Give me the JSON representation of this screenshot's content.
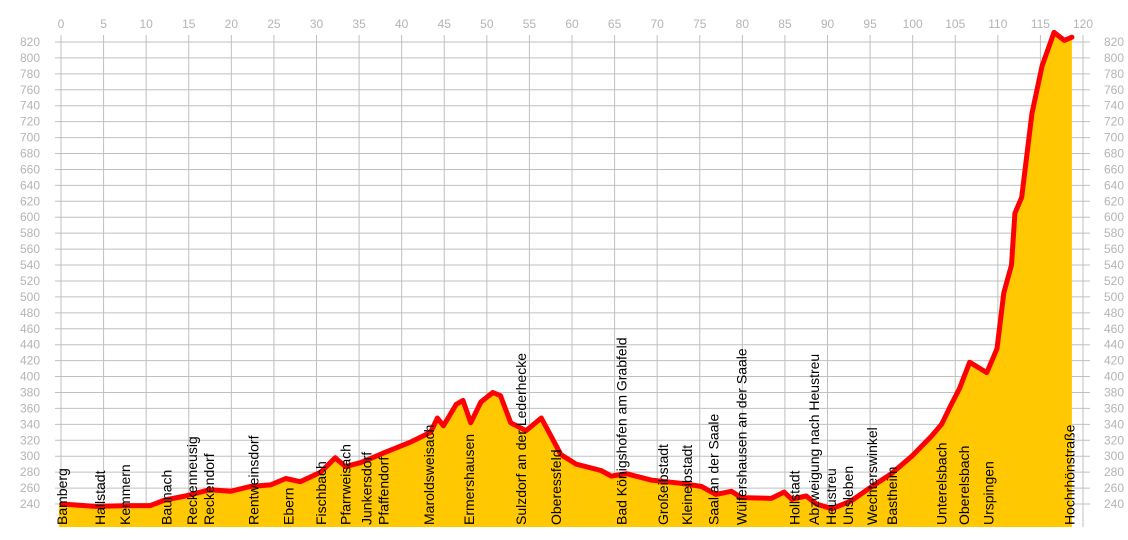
{
  "chart_data": {
    "type": "area",
    "title": "",
    "xlabel": "",
    "ylabel": "",
    "xlim": [
      0,
      120
    ],
    "ylim": [
      240,
      820
    ],
    "x_ticks": [
      0,
      5,
      10,
      15,
      20,
      25,
      30,
      35,
      40,
      45,
      50,
      55,
      60,
      65,
      70,
      75,
      80,
      85,
      90,
      95,
      100,
      105,
      110,
      115,
      120
    ],
    "y_ticks": [
      240,
      260,
      280,
      300,
      320,
      340,
      360,
      380,
      400,
      420,
      440,
      460,
      480,
      500,
      520,
      540,
      560,
      580,
      600,
      620,
      640,
      660,
      680,
      700,
      720,
      740,
      760,
      780,
      800,
      820
    ],
    "grid": true,
    "colors": {
      "fill": "#ffc800",
      "line": "#ff0000",
      "grid": "#c0c0c0",
      "ticks": "#b4b4b4"
    },
    "profile": [
      [
        0.1,
        240
      ],
      [
        4.0,
        237
      ],
      [
        8.1,
        238
      ],
      [
        10.5,
        238
      ],
      [
        12.2,
        245
      ],
      [
        14.6,
        250
      ],
      [
        17.5,
        258
      ],
      [
        19.9,
        256
      ],
      [
        22.2,
        262
      ],
      [
        24.6,
        264
      ],
      [
        26.4,
        272
      ],
      [
        28.1,
        268
      ],
      [
        30.5,
        280
      ],
      [
        32.2,
        298
      ],
      [
        33.4,
        287
      ],
      [
        35.2,
        292
      ],
      [
        38.1,
        305
      ],
      [
        41.1,
        318
      ],
      [
        43.4,
        330
      ],
      [
        44.2,
        348
      ],
      [
        44.9,
        338
      ],
      [
        46.4,
        365
      ],
      [
        47.2,
        370
      ],
      [
        48.1,
        342
      ],
      [
        49.3,
        368
      ],
      [
        50.7,
        380
      ],
      [
        51.6,
        376
      ],
      [
        52.8,
        342
      ],
      [
        54.6,
        332
      ],
      [
        56.4,
        348
      ],
      [
        57.3,
        330
      ],
      [
        58.7,
        302
      ],
      [
        60.5,
        290
      ],
      [
        63.4,
        282
      ],
      [
        64.6,
        275
      ],
      [
        66.4,
        278
      ],
      [
        69.3,
        270
      ],
      [
        72.8,
        266
      ],
      [
        75.2,
        262
      ],
      [
        76.9,
        252
      ],
      [
        78.7,
        256
      ],
      [
        79.9,
        248
      ],
      [
        83.4,
        247
      ],
      [
        84.9,
        255
      ],
      [
        85.8,
        246
      ],
      [
        87.5,
        250
      ],
      [
        88.7,
        240
      ],
      [
        90.5,
        234
      ],
      [
        92.8,
        244
      ],
      [
        95.2,
        262
      ],
      [
        97.5,
        278
      ],
      [
        99.9,
        300
      ],
      [
        102.2,
        325
      ],
      [
        103.4,
        340
      ],
      [
        104.4,
        362
      ],
      [
        105.5,
        385
      ],
      [
        106.7,
        418
      ],
      [
        108.7,
        405
      ],
      [
        109.9,
        435
      ],
      [
        110.7,
        505
      ],
      [
        111.6,
        540
      ],
      [
        112.0,
        605
      ],
      [
        112.8,
        625
      ],
      [
        114.0,
        730
      ],
      [
        115.2,
        790
      ],
      [
        116.6,
        832
      ],
      [
        117.8,
        822
      ],
      [
        118.7,
        826
      ]
    ],
    "waypoints": [
      {
        "name": "Bamberg",
        "km": 0.1
      },
      {
        "name": "Hallstadt",
        "km": 4.6
      },
      {
        "name": "Kemmern",
        "km": 7.5
      },
      {
        "name": "Baunach",
        "km": 12.4
      },
      {
        "name": "Reckenneusig",
        "km": 15.4
      },
      {
        "name": "Reckendorf",
        "km": 16.6
      },
      {
        "name": "Rentweinsdorf",
        "km": 22.6
      },
      {
        "name": "Ebern",
        "km": 26.7
      },
      {
        "name": "Fischbach",
        "km": 30.5
      },
      {
        "name": "Pfarrweisach",
        "km": 33.4
      },
      {
        "name": "Junkersdorf",
        "km": 35.9
      },
      {
        "name": "Pfaffendorf",
        "km": 37.5
      },
      {
        "name": "Maroldsweisach",
        "km": 43.2
      },
      {
        "name": "Ermershausen",
        "km": 47.9
      },
      {
        "name": "Sulzdorf an der Lederhecke",
        "km": 54.0
      },
      {
        "name": "Oberessfeld",
        "km": 58.1
      },
      {
        "name": "Bad Königshofen am Grabfeld",
        "km": 65.8
      },
      {
        "name": "Großeibstadt",
        "km": 70.7
      },
      {
        "name": "Kleineibstadt",
        "km": 73.5
      },
      {
        "name": "Saal an der Saale",
        "km": 76.6
      },
      {
        "name": "Wülfershausen an der Saale",
        "km": 79.9
      },
      {
        "name": "Hollstadt",
        "km": 86.1
      },
      {
        "name": "Abzweigung nach Heustreu",
        "km": 88.4
      },
      {
        "name": "Heustreu",
        "km": 89.3
      },
      {
        "name": "Unsleben",
        "km": 92.2
      },
      {
        "name": "Wechterswinkel",
        "km": 95.2
      },
      {
        "name": "Bastheim",
        "km": 97.6
      },
      {
        "name": "Unterelsbach",
        "km": 103.4
      },
      {
        "name": "Oberelsbach",
        "km": 106.0
      },
      {
        "name": "Urspingen",
        "km": 108.9
      },
      {
        "name": "Hochrhönstraße",
        "km": 118.4
      }
    ]
  }
}
